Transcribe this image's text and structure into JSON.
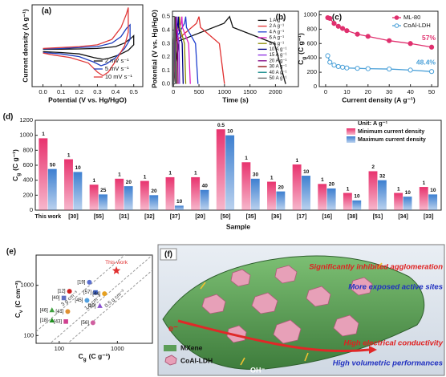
{
  "chart_data": [
    {
      "panel": "(a)",
      "type": "line",
      "xlabel": "Potential (V vs. Hg/HgO)",
      "ylabel": "Current density (A g⁻¹)",
      "xlim": [
        -0.06,
        0.55
      ],
      "ylim": [
        -40,
        50
      ],
      "xticks": [
        {
          "value": 0,
          "label": "0.0"
        },
        {
          "value": 0.1,
          "label": "0.1"
        },
        {
          "value": 0.2,
          "label": "0.2"
        },
        {
          "value": 0.3,
          "label": "0.3"
        },
        {
          "value": 0.4,
          "label": "0.4"
        },
        {
          "value": 0.5,
          "label": "0.5"
        }
      ],
      "legend": "lower right",
      "series": [
        {
          "name": "2 mV s⁻¹",
          "color": "#111111",
          "x": [
            0,
            0.1,
            0.2,
            0.3,
            0.4,
            0.45,
            0.49,
            0.5,
            0.5,
            0.47,
            0.42,
            0.36,
            0.33,
            0.28,
            0.2,
            0.1,
            0
          ],
          "values": [
            1,
            1.2,
            1.5,
            2,
            4,
            8,
            14,
            16,
            6,
            0,
            -5,
            -9,
            -10,
            -8,
            -4,
            -2.5,
            -1.5
          ]
        },
        {
          "name": "5 mV s⁻¹",
          "color": "#1f3fbf",
          "x": [
            0,
            0.1,
            0.2,
            0.3,
            0.38,
            0.43,
            0.46,
            0.48,
            0.48,
            0.45,
            0.4,
            0.35,
            0.32,
            0.28,
            0.2,
            0.1,
            0
          ],
          "values": [
            1.5,
            2,
            3,
            4,
            8,
            15,
            24,
            28,
            12,
            2,
            -8,
            -15,
            -17,
            -13,
            -7,
            -4,
            -2.5
          ]
        },
        {
          "name": "10 mV s⁻¹",
          "color": "#e03a3a",
          "x": [
            0,
            0.1,
            0.2,
            0.3,
            0.38,
            0.43,
            0.46,
            0.47,
            0.47,
            0.45,
            0.4,
            0.36,
            0.33,
            0.3,
            0.25,
            0.15,
            0.05,
            0
          ],
          "values": [
            2,
            3,
            4,
            6,
            12,
            25,
            40,
            47,
            20,
            5,
            -12,
            -24,
            -28,
            -24,
            -14,
            -8,
            -5,
            -3
          ]
        }
      ]
    },
    {
      "panel": "(b)",
      "type": "line",
      "xlabel": "Time (s)",
      "ylabel": "Potential (V vs. Hg/HgO)",
      "xlim": [
        -20,
        2450
      ],
      "ylim": [
        -0.02,
        0.54
      ],
      "xticks": [
        0,
        500,
        1000,
        1500,
        2000
      ],
      "yticks": [
        {
          "value": 0,
          "label": "0.0"
        },
        {
          "value": 0.1,
          "label": "0.1"
        },
        {
          "value": 0.2,
          "label": "0.2"
        },
        {
          "value": 0.3,
          "label": "0.3"
        },
        {
          "value": 0.4,
          "label": "0.4"
        },
        {
          "value": 0.5,
          "label": "0.5"
        }
      ],
      "legend": "center right",
      "series": [
        {
          "name": "1 A g⁻¹",
          "color": "#111111",
          "x": [
            0,
            110,
            990,
            1100,
            1166,
            1980,
            2200
          ],
          "values": [
            0,
            0.32,
            0.45,
            0.5,
            0.42,
            0.3,
            0
          ]
        },
        {
          "name": "2 A g⁻¹",
          "color": "#e03030",
          "x": [
            0,
            50,
            450,
            500,
            530,
            900,
            1000
          ],
          "values": [
            0,
            0.32,
            0.45,
            0.5,
            0.42,
            0.3,
            0
          ]
        },
        {
          "name": "4 A g⁻¹",
          "color": "#2040d0",
          "x": [
            0,
            24,
            216,
            240,
            254,
            432,
            480
          ],
          "values": [
            0,
            0.32,
            0.45,
            0.5,
            0.42,
            0.3,
            0
          ]
        },
        {
          "name": "6 A g⁻¹",
          "color": "#e020c0",
          "x": [
            0,
            16,
            148,
            165,
            175,
            297,
            330
          ],
          "values": [
            0,
            0.32,
            0.45,
            0.5,
            0.42,
            0.3,
            0
          ]
        },
        {
          "name": "8 A g⁻¹",
          "color": "#8a8a00",
          "x": [
            0,
            12,
            108,
            120,
            127,
            216,
            240
          ],
          "values": [
            0,
            0.32,
            0.45,
            0.5,
            0.42,
            0.3,
            0
          ]
        },
        {
          "name": "10 A g⁻¹",
          "color": "#000080",
          "x": [
            0,
            10,
            86,
            95,
            101,
            171,
            190
          ],
          "values": [
            0,
            0.32,
            0.45,
            0.5,
            0.42,
            0.3,
            0
          ]
        },
        {
          "name": "15 A g⁻¹",
          "color": "#8a2be2",
          "x": [
            0,
            6,
            54,
            60,
            64,
            108,
            120
          ],
          "values": [
            0,
            0.32,
            0.45,
            0.5,
            0.42,
            0.3,
            0
          ]
        },
        {
          "name": "20 A g⁻¹",
          "color": "#800080",
          "x": [
            0,
            4,
            40,
            45,
            48,
            81,
            90
          ],
          "values": [
            0,
            0.32,
            0.45,
            0.5,
            0.42,
            0.3,
            0
          ]
        },
        {
          "name": "30 A g⁻¹",
          "color": "#8b0000",
          "x": [
            0,
            3,
            27,
            30,
            32,
            54,
            60
          ],
          "values": [
            0,
            0.32,
            0.45,
            0.5,
            0.42,
            0.3,
            0
          ]
        },
        {
          "name": "40 A g⁻¹",
          "color": "#008080",
          "x": [
            0,
            2,
            20,
            22,
            24,
            40,
            45
          ],
          "values": [
            0,
            0.32,
            0.45,
            0.5,
            0.42,
            0.3,
            0
          ]
        },
        {
          "name": "50 A g⁻¹",
          "color": "#666666",
          "x": [
            0,
            2,
            16,
            17,
            19,
            31,
            35
          ],
          "values": [
            0,
            0.32,
            0.45,
            0.5,
            0.42,
            0.3,
            0
          ]
        }
      ]
    },
    {
      "panel": "(c)",
      "type": "line",
      "markers": true,
      "xlabel": "Current density (A g⁻¹)",
      "ylabel": {
        "text": "C",
        "sub": "g",
        "unit": "(C g⁻¹)"
      },
      "xlim": [
        -3,
        53
      ],
      "ylim": [
        0,
        1050
      ],
      "xticks": [
        0,
        10,
        20,
        30,
        40,
        50
      ],
      "yticks": [
        0,
        200,
        400,
        600,
        800,
        1000
      ],
      "legend": "upper right",
      "series": [
        {
          "name": "ML-80",
          "color": "#e0306e",
          "filled": true,
          "x": [
            1,
            2,
            4,
            6,
            8,
            10,
            15,
            20,
            30,
            40,
            50
          ],
          "values": [
            960,
            950,
            880,
            840,
            810,
            780,
            730,
            700,
            640,
            600,
            550
          ]
        },
        {
          "name": "CoAl-LDH",
          "color": "#4aa0d8",
          "filled": false,
          "x": [
            1,
            2,
            4,
            6,
            8,
            10,
            15,
            20,
            30,
            40,
            50
          ],
          "values": [
            430,
            340,
            300,
            280,
            270,
            260,
            255,
            250,
            245,
            230,
            210
          ]
        }
      ],
      "annotations": [
        {
          "text": "57%",
          "color": "#e0306e"
        },
        {
          "text": "48.4%",
          "color": "#4aa0d8"
        }
      ]
    },
    {
      "panel": "(d)",
      "type": "bar",
      "xlabel": "Sample",
      "ylabel": {
        "text": "C",
        "sub": "g",
        "unit": "(C g⁻¹)"
      },
      "ylim": [
        0,
        1200
      ],
      "yticks": [
        0,
        200,
        400,
        600,
        800,
        1000,
        1200
      ],
      "legend": "upper right",
      "legend_title": "Unit: A g⁻¹",
      "categories": [
        "This work",
        "[30]",
        "[55]",
        "[31]",
        "[32]",
        "[37]",
        "[20]",
        "[50]",
        "[35]",
        "[36]",
        "[17]",
        "[16]",
        "[38]",
        "[51]",
        "[34]",
        "[33]"
      ],
      "series": [
        {
          "name": "Minimum current density",
          "color": "#e8336e",
          "values": [
            960,
            680,
            340,
            420,
            390,
            440,
            440,
            1080,
            640,
            380,
            610,
            350,
            230,
            520,
            230,
            310
          ],
          "annotations": [
            "1",
            "1",
            "1",
            "1",
            "1",
            "1",
            "1",
            "0.5",
            "1",
            "1",
            "1",
            "1",
            "1",
            "2",
            "1",
            "1"
          ]
        },
        {
          "name": "Maximum current density",
          "color": "#3d7fd0",
          "values": [
            550,
            510,
            210,
            320,
            200,
            60,
            270,
            1000,
            420,
            250,
            460,
            290,
            130,
            400,
            180,
            210
          ],
          "annotations": [
            "50",
            "10",
            "25",
            "20",
            "20",
            "10",
            "40",
            "10",
            "30",
            "20",
            "10",
            "20",
            "10",
            "32",
            "10",
            "10"
          ]
        }
      ]
    },
    {
      "panel": "(e)",
      "type": "scatter",
      "xlog": true,
      "ylog": true,
      "xlabel": {
        "text": "C",
        "sub": "g",
        "unit": "(C g⁻¹)"
      },
      "ylabel": {
        "text": "C",
        "sub": "v",
        "unit": "(C cm⁻³)"
      },
      "xlim": [
        40,
        4000
      ],
      "ylim": [
        70,
        4000
      ],
      "xticks": [
        100,
        1000
      ],
      "yticks": [
        100,
        1000
      ],
      "density_lines": [
        {
          "value": 3,
          "label": "3 g cm⁻³"
        },
        {
          "value": 1,
          "label": "1 g cm⁻³"
        },
        {
          "value": 0.5,
          "label": "0.5 g cm⁻³"
        }
      ],
      "points": [
        {
          "label": "This work",
          "x": 960,
          "y": 1960,
          "color": "#e03030",
          "marker": "star"
        },
        {
          "label": "[19]",
          "x": 330,
          "y": 1150,
          "color": "#5a6fd0",
          "marker": "circle"
        },
        {
          "label": "[57]",
          "x": 420,
          "y": 720,
          "color": "#3b5fc0",
          "marker": "square"
        },
        {
          "label": "[44]",
          "x": 600,
          "y": 680,
          "color": "#e6a020",
          "marker": "circle"
        },
        {
          "label": "[12]",
          "x": 150,
          "y": 760,
          "color": "#d02020",
          "marker": "circle"
        },
        {
          "label": "[40]",
          "x": 120,
          "y": 560,
          "color": "#6070c0",
          "marker": "square"
        },
        {
          "label": "[45]",
          "x": 300,
          "y": 500,
          "color": "#50a0e0",
          "marker": "circle"
        },
        {
          "label": "[29]",
          "x": 500,
          "y": 390,
          "color": "#8a50d0",
          "marker": "triangle"
        },
        {
          "label": "[46]",
          "x": 75,
          "y": 320,
          "color": "#40a040",
          "marker": "triangle"
        },
        {
          "label": "[41]",
          "x": 140,
          "y": 300,
          "color": "#e09030",
          "marker": "circle"
        },
        {
          "label": "[18]",
          "x": 75,
          "y": 200,
          "color": "#209020",
          "marker": "triangle"
        },
        {
          "label": "[43]",
          "x": 130,
          "y": 190,
          "color": "#d04090",
          "marker": "square"
        },
        {
          "label": "[56]",
          "x": 380,
          "y": 180,
          "color": "#d060a0",
          "marker": "circle"
        }
      ]
    }
  ],
  "illustration": {
    "panel": "(f)",
    "callouts": [
      "Significantly inhibited agglomeration",
      "More exposed active sites",
      "High electrical conductivity",
      "High volumetric performances"
    ],
    "legend": [
      "MXene",
      "CoAl-LDH"
    ],
    "electron": "e⁻",
    "hydroxide": "OH⁻"
  }
}
